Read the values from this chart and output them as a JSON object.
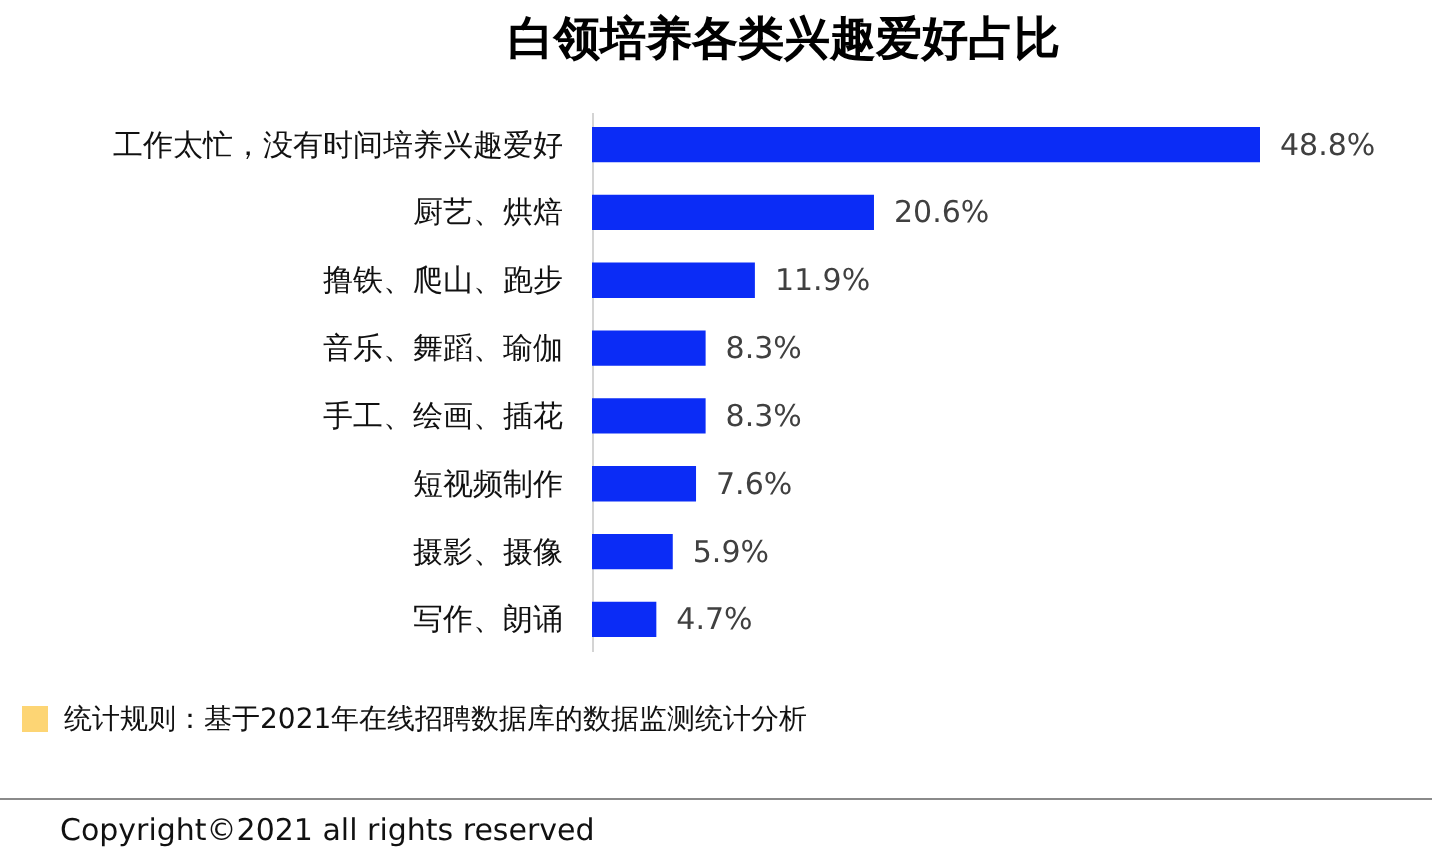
{
  "chart_data": {
    "type": "bar",
    "orientation": "horizontal",
    "title": "白领培养各类兴趣爱好占比",
    "categories": [
      "工作太忙，没有时间培养兴趣爱好",
      "厨艺、烘焙",
      "撸铁、爬山、跑步",
      "音乐、舞蹈、瑜伽",
      "手工、绘画、插花",
      "短视频制作",
      "摄影、摄像",
      "写作、朗诵"
    ],
    "values": [
      48.8,
      20.6,
      11.9,
      8.3,
      8.3,
      7.6,
      5.9,
      4.7
    ],
    "value_labels": [
      "48.8%",
      "20.6%",
      "11.9%",
      "8.3%",
      "8.3%",
      "7.6%",
      "5.9%",
      "4.7%"
    ],
    "color": "#0b2cf6",
    "annotations": [
      "统计规则：基于2021年在线招聘数据库的数据监测统计分析",
      "Copyright©2021 all rights reserved"
    ]
  }
}
